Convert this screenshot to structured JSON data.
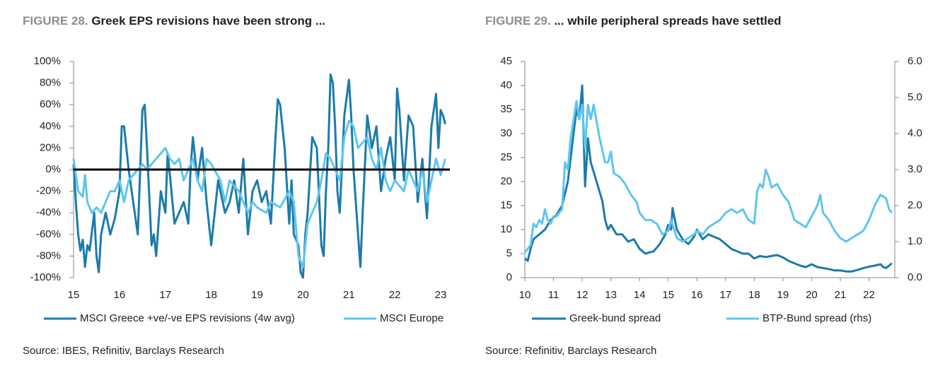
{
  "chart_data": [
    {
      "type": "line",
      "figure_label": "FIGURE 28.",
      "title": "Greek EPS revisions have been strong ...",
      "source": "Source: IBES, Refinitiv, Barclays Research",
      "xlim": [
        15,
        23.2
      ],
      "xticks": [
        15,
        16,
        17,
        18,
        19,
        20,
        21,
        22,
        23
      ],
      "ylim": [
        -100,
        100
      ],
      "yticks": [
        {
          "value": -100,
          "label": "-100%"
        },
        {
          "value": -80,
          "label": "-80%"
        },
        {
          "value": -60,
          "label": "-60%"
        },
        {
          "value": -40,
          "label": "-40%"
        },
        {
          "value": -20,
          "label": "-20%"
        },
        {
          "value": 0,
          "label": "0%"
        },
        {
          "value": 20,
          "label": "20%"
        },
        {
          "value": 40,
          "label": "40%"
        },
        {
          "value": 60,
          "label": "60%"
        },
        {
          "value": 80,
          "label": "80%"
        },
        {
          "value": 100,
          "label": "100%"
        }
      ],
      "zero_line": true,
      "series": [
        {
          "name": "MSCI Greece +ve/-ve EPS revisions (4w avg)",
          "color": "#1b7bab",
          "x": [
            15.0,
            15.05,
            15.1,
            15.15,
            15.2,
            15.25,
            15.3,
            15.35,
            15.45,
            15.5,
            15.55,
            15.6,
            15.7,
            15.8,
            15.9,
            16.0,
            16.05,
            16.1,
            16.2,
            16.3,
            16.4,
            16.5,
            16.55,
            16.6,
            16.7,
            16.75,
            16.8,
            16.9,
            17.0,
            17.05,
            17.1,
            17.2,
            17.3,
            17.4,
            17.5,
            17.55,
            17.6,
            17.7,
            17.8,
            17.9,
            18.0,
            18.05,
            18.15,
            18.3,
            18.4,
            18.5,
            18.6,
            18.7,
            18.8,
            18.9,
            19.0,
            19.1,
            19.2,
            19.3,
            19.4,
            19.45,
            19.5,
            19.6,
            19.7,
            19.75,
            19.8,
            19.9,
            19.95,
            20.0,
            20.05,
            20.1,
            20.2,
            20.3,
            20.4,
            20.45,
            20.5,
            20.55,
            20.6,
            20.65,
            20.7,
            20.75,
            20.8,
            20.9,
            21.0,
            21.05,
            21.1,
            21.2,
            21.25,
            21.3,
            21.4,
            21.5,
            21.6,
            21.7,
            21.8,
            21.9,
            22.0,
            22.05,
            22.1,
            22.2,
            22.3,
            22.4,
            22.5,
            22.6,
            22.7,
            22.8,
            22.9,
            22.95,
            23.0,
            23.05,
            23.1
          ],
          "values": [
            5,
            -30,
            -60,
            -75,
            -65,
            -90,
            -70,
            -75,
            -40,
            -80,
            -95,
            -60,
            -40,
            -60,
            -45,
            -20,
            40,
            40,
            0,
            -30,
            -60,
            55,
            60,
            20,
            -70,
            -60,
            -80,
            -20,
            -40,
            15,
            -5,
            -50,
            -40,
            -30,
            -50,
            0,
            30,
            -10,
            20,
            -30,
            -70,
            -50,
            -10,
            -40,
            -30,
            -10,
            -40,
            10,
            -60,
            -20,
            -10,
            -30,
            -20,
            -50,
            30,
            65,
            60,
            20,
            -50,
            -10,
            -60,
            -70,
            -95,
            -100,
            -60,
            -40,
            30,
            20,
            -70,
            -80,
            -20,
            20,
            88,
            80,
            40,
            -20,
            -40,
            50,
            83,
            50,
            0,
            -60,
            -90,
            -40,
            50,
            20,
            40,
            -20,
            10,
            30,
            -10,
            75,
            55,
            -10,
            50,
            40,
            -30,
            10,
            -45,
            40,
            70,
            20,
            55,
            50,
            42
          ]
        },
        {
          "name": "MSCI Europe",
          "color": "#5ec6ee",
          "x": [
            15.0,
            15.1,
            15.2,
            15.25,
            15.3,
            15.4,
            15.5,
            15.6,
            15.7,
            15.8,
            15.9,
            16.0,
            16.1,
            16.2,
            16.4,
            16.5,
            16.6,
            16.7,
            16.8,
            16.9,
            17.0,
            17.1,
            17.2,
            17.3,
            17.4,
            17.5,
            17.6,
            17.7,
            17.8,
            17.9,
            18.0,
            18.2,
            18.3,
            18.4,
            18.6,
            18.7,
            18.8,
            18.9,
            19.0,
            19.2,
            19.3,
            19.5,
            19.7,
            19.8,
            19.9,
            20.0,
            20.1,
            20.2,
            20.3,
            20.4,
            20.5,
            20.6,
            20.7,
            20.8,
            20.9,
            21.0,
            21.1,
            21.2,
            21.3,
            21.4,
            21.5,
            21.6,
            21.7,
            21.8,
            21.9,
            22.0,
            22.2,
            22.3,
            22.4,
            22.5,
            22.6,
            22.7,
            22.8,
            22.9,
            23.0,
            23.1
          ],
          "values": [
            10,
            -20,
            -25,
            -5,
            -30,
            -40,
            -35,
            -40,
            -30,
            -20,
            -20,
            -10,
            -30,
            -10,
            0,
            5,
            0,
            5,
            10,
            15,
            20,
            10,
            5,
            10,
            -10,
            0,
            10,
            -10,
            -20,
            10,
            5,
            -10,
            -30,
            -10,
            -20,
            -30,
            -40,
            -30,
            -35,
            -40,
            -30,
            -35,
            -20,
            -30,
            -80,
            -90,
            -50,
            -40,
            -30,
            -10,
            15,
            10,
            0,
            -10,
            30,
            45,
            40,
            20,
            25,
            30,
            10,
            0,
            20,
            -10,
            -20,
            -10,
            -20,
            0,
            -10,
            -20,
            0,
            -30,
            -10,
            10,
            -5,
            10
          ]
        }
      ]
    },
    {
      "type": "line",
      "figure_label": "FIGURE 29.",
      "title": "... while peripheral spreads have settled",
      "source": "Source: Refinitiv, Barclays Research",
      "xlim": [
        10,
        22.9
      ],
      "xticks": [
        10,
        11,
        12,
        13,
        14,
        15,
        16,
        17,
        18,
        19,
        20,
        21,
        22
      ],
      "ylim": [
        0,
        45
      ],
      "yticks": [
        0,
        5,
        10,
        15,
        20,
        25,
        30,
        35,
        40,
        45
      ],
      "y2lim": [
        0,
        6
      ],
      "y2ticks": [
        {
          "value": 0,
          "label": "0.0"
        },
        {
          "value": 1,
          "label": "1.0"
        },
        {
          "value": 2,
          "label": "2.0"
        },
        {
          "value": 3,
          "label": "3.0"
        },
        {
          "value": 4,
          "label": "4.0"
        },
        {
          "value": 5,
          "label": "5.0"
        },
        {
          "value": 6,
          "label": "6.0"
        }
      ],
      "series": [
        {
          "name": "Greek-bund spread",
          "color": "#1b7bab",
          "x": [
            10.0,
            10.1,
            10.2,
            10.3,
            10.5,
            10.7,
            10.9,
            11.1,
            11.3,
            11.5,
            11.7,
            11.8,
            11.9,
            12.0,
            12.05,
            12.1,
            12.15,
            12.2,
            12.3,
            12.4,
            12.6,
            12.7,
            12.8,
            12.9,
            13.0,
            13.2,
            13.4,
            13.6,
            13.8,
            14.0,
            14.2,
            14.5,
            14.7,
            14.9,
            15.0,
            15.1,
            15.15,
            15.3,
            15.5,
            15.7,
            15.9,
            16.0,
            16.2,
            16.4,
            16.6,
            16.8,
            17.0,
            17.2,
            17.4,
            17.6,
            17.8,
            18.0,
            18.2,
            18.4,
            18.6,
            18.8,
            19.0,
            19.2,
            19.4,
            19.6,
            19.8,
            20.0,
            20.2,
            20.4,
            20.6,
            20.8,
            21.0,
            21.2,
            21.4,
            21.6,
            21.8,
            22.0,
            22.2,
            22.4,
            22.5,
            22.6,
            22.7,
            22.8
          ],
          "values": [
            4,
            3.5,
            6,
            8,
            9,
            10,
            12,
            13,
            15,
            20,
            30,
            35,
            33,
            40,
            30,
            19,
            24,
            29,
            24,
            22,
            18,
            16,
            12,
            10,
            11,
            9,
            9,
            7.5,
            8,
            6,
            5,
            5.5,
            7,
            9,
            11,
            10,
            14.5,
            10,
            8,
            7,
            8.5,
            10,
            8,
            9,
            8.5,
            8,
            7,
            6,
            5.5,
            5,
            5,
            4,
            4.5,
            4.3,
            4.5,
            4.7,
            4.2,
            3.5,
            3,
            2.5,
            2.2,
            2.8,
            2.2,
            2.0,
            1.8,
            1.5,
            1.5,
            1.3,
            1.3,
            1.6,
            2,
            2.3,
            2.5,
            2.8,
            2.2,
            2,
            2.5,
            3
          ]
        },
        {
          "name": "BTP-Bund spread (rhs)",
          "color": "#5ec6ee",
          "axis": "y2",
          "x": [
            10.0,
            10.2,
            10.3,
            10.4,
            10.5,
            10.6,
            10.7,
            10.8,
            10.9,
            11.0,
            11.1,
            11.3,
            11.4,
            11.5,
            11.6,
            11.8,
            11.9,
            12.0,
            12.1,
            12.2,
            12.3,
            12.4,
            12.6,
            12.8,
            12.9,
            13.0,
            13.1,
            13.3,
            13.5,
            13.7,
            13.9,
            14.0,
            14.2,
            14.4,
            14.6,
            14.8,
            15.0,
            15.1,
            15.3,
            15.5,
            15.7,
            15.9,
            16.0,
            16.2,
            16.4,
            16.6,
            16.8,
            17.0,
            17.2,
            17.4,
            17.6,
            17.8,
            18.0,
            18.1,
            18.2,
            18.3,
            18.4,
            18.5,
            18.6,
            18.8,
            19.0,
            19.2,
            19.4,
            19.6,
            19.8,
            20.0,
            20.2,
            20.3,
            20.4,
            20.6,
            20.8,
            21.0,
            21.2,
            21.4,
            21.6,
            21.8,
            22.0,
            22.2,
            22.4,
            22.6,
            22.7,
            22.8
          ],
          "values": [
            0.7,
            0.9,
            1.5,
            1.4,
            1.6,
            1.5,
            1.9,
            1.6,
            1.5,
            1.7,
            1.7,
            1.9,
            3.2,
            3.0,
            3.9,
            4.9,
            4.4,
            4.8,
            3.6,
            4.8,
            4.4,
            4.8,
            3.9,
            3.2,
            3.2,
            3.5,
            2.9,
            2.8,
            2.6,
            2.3,
            2.1,
            1.8,
            1.6,
            1.6,
            1.5,
            1.2,
            1.3,
            1.6,
            1.1,
            1.0,
            1.1,
            1.2,
            1.3,
            1.2,
            1.4,
            1.5,
            1.6,
            1.8,
            1.9,
            1.8,
            1.9,
            1.6,
            1.5,
            2.4,
            2.6,
            2.5,
            3.0,
            2.8,
            2.5,
            2.6,
            2.3,
            2.1,
            1.6,
            1.5,
            1.4,
            1.7,
            2.0,
            2.3,
            1.8,
            1.6,
            1.3,
            1.1,
            1.0,
            1.1,
            1.2,
            1.3,
            1.6,
            2.0,
            2.3,
            2.2,
            1.9,
            1.8
          ]
        }
      ]
    }
  ]
}
